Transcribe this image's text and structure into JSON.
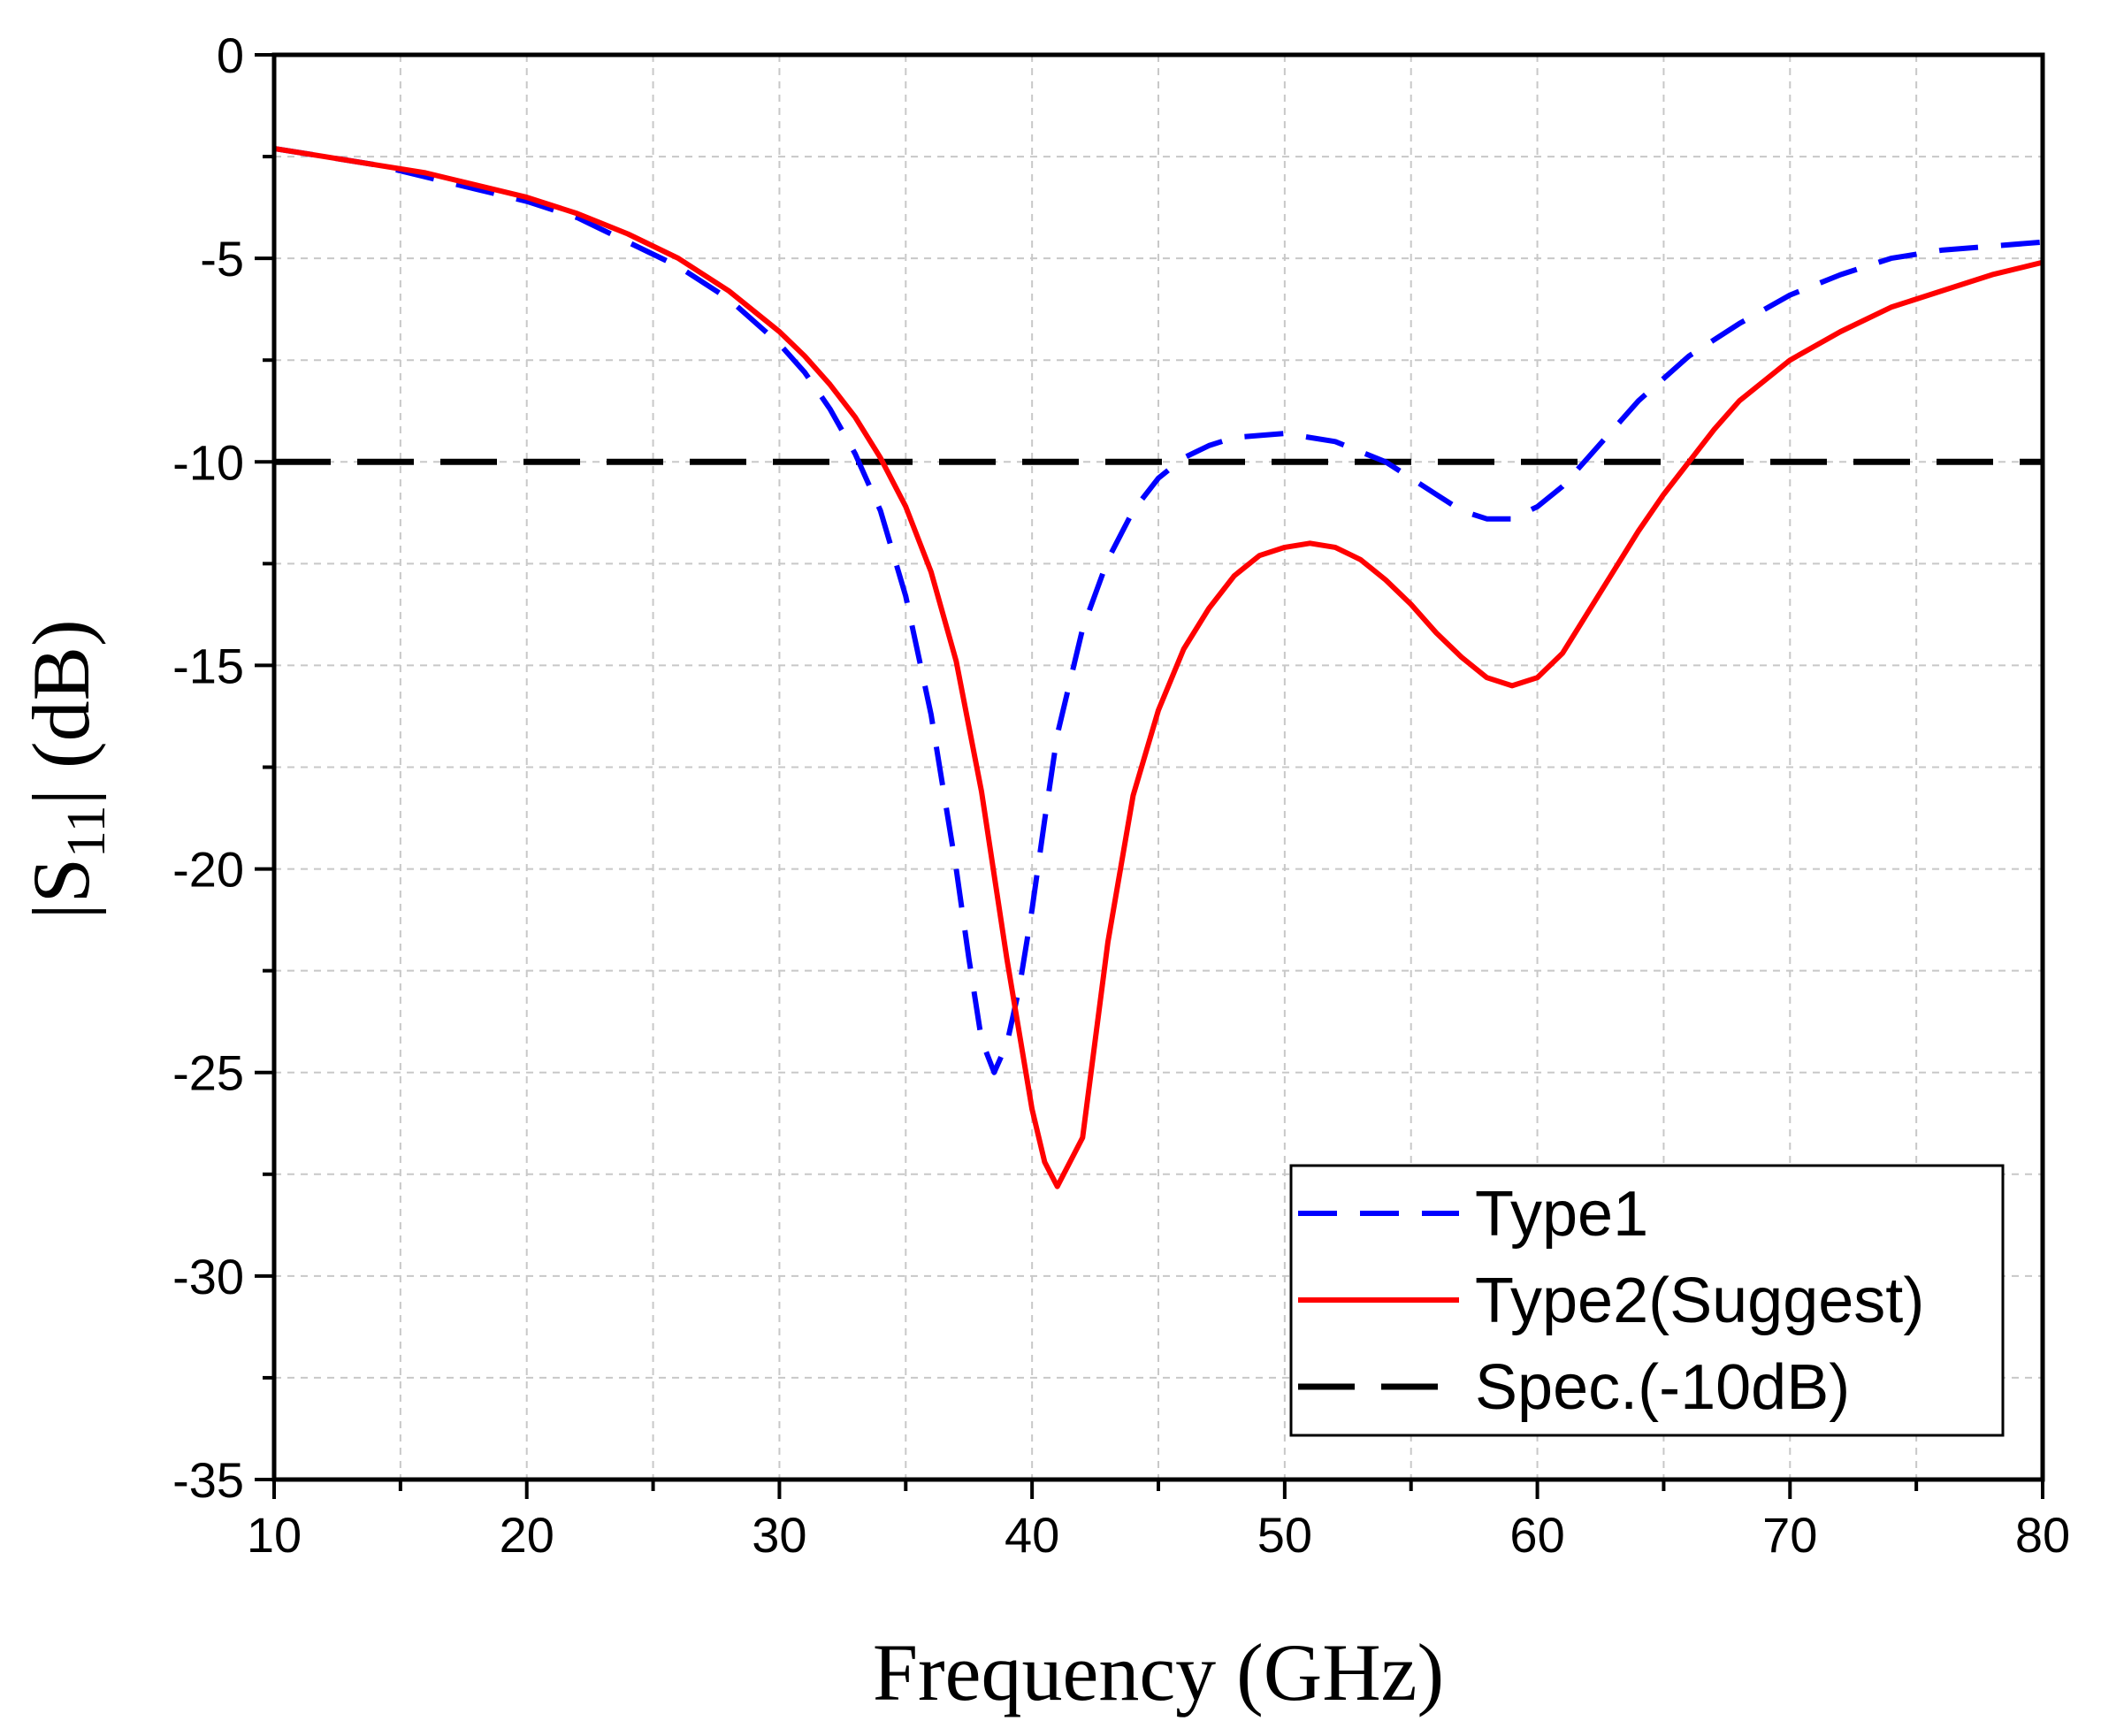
{
  "chart_data": {
    "type": "line",
    "title": "",
    "xlabel": "Frequency (GHz)",
    "ylabel": {
      "prefix": "|S",
      "subscript": "11",
      "suffix": "| (dB)"
    },
    "xlim": [
      10,
      80
    ],
    "ylim": [
      -35,
      0
    ],
    "x_ticks": [
      10,
      20,
      30,
      40,
      50,
      60,
      70,
      80
    ],
    "y_ticks": [
      0,
      -5,
      -10,
      -15,
      -20,
      -25,
      -30,
      -35
    ],
    "x_tick_labels": [
      "10",
      "20",
      "30",
      "40",
      "50",
      "60",
      "70",
      "80"
    ],
    "y_tick_labels": [
      "0",
      "-5",
      "-10",
      "-15",
      "-20",
      "-25",
      "-30",
      "-35"
    ],
    "grid": true,
    "legend_position": "bottom-right",
    "series": [
      {
        "name": "Type1",
        "style": "dashed",
        "color": "#0000ff",
        "x": [
          10,
          12,
          14,
          16,
          18,
          20,
          22,
          24,
          26,
          28,
          30,
          31,
          32,
          33,
          34,
          35,
          36,
          37,
          37.5,
          38,
          38.5,
          39,
          39.5,
          40,
          40.5,
          41,
          42,
          43,
          44,
          45,
          46,
          47,
          48,
          50,
          52,
          54,
          56,
          57,
          58,
          59,
          60,
          61,
          62,
          63,
          64,
          66,
          68,
          70,
          72,
          74,
          76,
          78,
          80
        ],
        "y": [
          -2.3,
          -2.5,
          -2.7,
          -3.0,
          -3.3,
          -3.6,
          -4.0,
          -4.6,
          -5.2,
          -6.0,
          -7.1,
          -7.8,
          -8.7,
          -9.8,
          -11.2,
          -13.3,
          -16.2,
          -20.0,
          -22.2,
          -24.2,
          -25.0,
          -24.3,
          -22.9,
          -21.0,
          -18.8,
          -16.7,
          -14.1,
          -12.4,
          -11.2,
          -10.4,
          -9.9,
          -9.6,
          -9.4,
          -9.3,
          -9.5,
          -10.0,
          -10.8,
          -11.2,
          -11.4,
          -11.4,
          -11.1,
          -10.6,
          -9.9,
          -9.2,
          -8.5,
          -7.4,
          -6.6,
          -5.9,
          -5.4,
          -5.0,
          -4.8,
          -4.7,
          -4.6
        ]
      },
      {
        "name": "Type2(Suggest)",
        "style": "solid",
        "color": "#ff0000",
        "x": [
          10,
          12,
          14,
          16,
          18,
          20,
          22,
          24,
          26,
          28,
          30,
          31,
          32,
          33,
          34,
          35,
          36,
          37,
          38,
          39,
          40,
          40.5,
          41,
          42,
          43,
          44,
          45,
          46,
          47,
          48,
          49,
          50,
          51,
          52,
          53,
          54,
          55,
          56,
          57,
          58,
          59,
          60,
          61,
          62,
          63,
          64,
          65,
          66,
          67,
          68,
          70,
          72,
          74,
          76,
          78,
          80
        ],
        "y": [
          -2.3,
          -2.5,
          -2.7,
          -2.9,
          -3.2,
          -3.5,
          -3.9,
          -4.4,
          -5.0,
          -5.8,
          -6.8,
          -7.4,
          -8.1,
          -8.9,
          -9.9,
          -11.1,
          -12.7,
          -14.9,
          -18.1,
          -22.2,
          -25.9,
          -27.2,
          -27.8,
          -26.6,
          -21.8,
          -18.2,
          -16.1,
          -14.6,
          -13.6,
          -12.8,
          -12.3,
          -12.1,
          -12.0,
          -12.1,
          -12.4,
          -12.9,
          -13.5,
          -14.2,
          -14.8,
          -15.3,
          -15.5,
          -15.3,
          -14.7,
          -13.7,
          -12.7,
          -11.7,
          -10.8,
          -10.0,
          -9.2,
          -8.5,
          -7.5,
          -6.8,
          -6.2,
          -5.8,
          -5.4,
          -5.1
        ]
      },
      {
        "name": "Spec.(-10dB)",
        "style": "long-dashed",
        "color": "#000000",
        "x": [
          10,
          80
        ],
        "y": [
          -10,
          -10
        ]
      }
    ]
  }
}
